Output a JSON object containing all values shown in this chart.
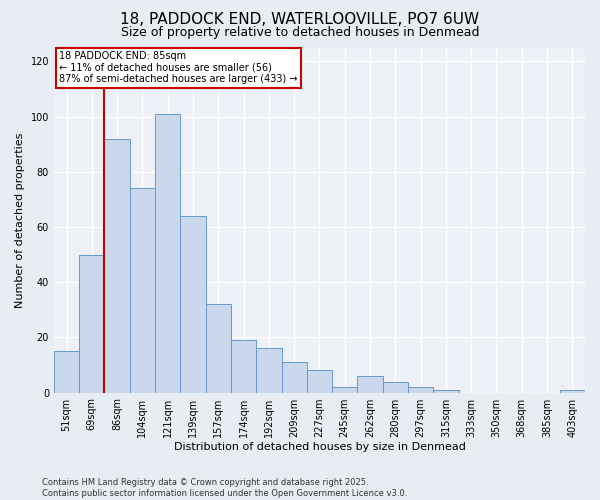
{
  "title": "18, PADDOCK END, WATERLOOVILLE, PO7 6UW",
  "subtitle": "Size of property relative to detached houses in Denmead",
  "xlabel": "Distribution of detached houses by size in Denmead",
  "ylabel": "Number of detached properties",
  "footer": "Contains HM Land Registry data © Crown copyright and database right 2025.\nContains public sector information licensed under the Open Government Licence v3.0.",
  "categories": [
    "51sqm",
    "69sqm",
    "86sqm",
    "104sqm",
    "121sqm",
    "139sqm",
    "157sqm",
    "174sqm",
    "192sqm",
    "209sqm",
    "227sqm",
    "245sqm",
    "262sqm",
    "280sqm",
    "297sqm",
    "315sqm",
    "333sqm",
    "350sqm",
    "368sqm",
    "385sqm",
    "403sqm"
  ],
  "values": [
    15,
    50,
    92,
    74,
    101,
    64,
    32,
    19,
    16,
    11,
    8,
    2,
    6,
    4,
    2,
    1,
    0,
    0,
    0,
    0,
    1
  ],
  "bar_color": "#c9d9eb",
  "bar_edge_color": "#6699cc",
  "vline_color": "#cc0000",
  "annotation_text": "18 PADDOCK END: 85sqm\n← 11% of detached houses are smaller (56)\n87% of semi-detached houses are larger (433) →",
  "annotation_box_color": "white",
  "annotation_box_edge_color": "#cc0000",
  "ylim": [
    0,
    125
  ],
  "yticks": [
    0,
    20,
    40,
    60,
    80,
    100,
    120
  ],
  "bg_color": "#e8edf4",
  "plot_bg_color": "#edf1f7",
  "grid_color": "#ffffff",
  "title_fontsize": 11,
  "subtitle_fontsize": 9,
  "axis_label_fontsize": 8,
  "tick_fontsize": 7,
  "footer_fontsize": 6,
  "annotation_fontsize": 7
}
